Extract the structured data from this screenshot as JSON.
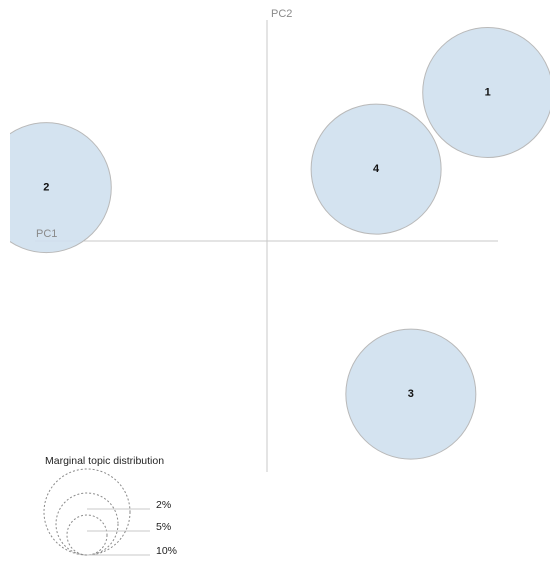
{
  "chart_data": {
    "type": "scatter",
    "title": "",
    "xlabel": "PC1",
    "ylabel": "PC2",
    "xlim": [
      -1,
      1
    ],
    "ylim": [
      -1,
      1
    ],
    "grid": false,
    "points": [
      {
        "label": "1",
        "x": 0.89,
        "y": 0.64,
        "size_pct": 4.2
      },
      {
        "label": "2",
        "x": -0.89,
        "y": 0.23,
        "size_pct": 4.2
      },
      {
        "label": "3",
        "x": 0.58,
        "y": -0.66,
        "size_pct": 4.2
      },
      {
        "label": "4",
        "x": 0.44,
        "y": 0.31,
        "size_pct": 4.2
      }
    ],
    "legend": {
      "title": "Marginal topic distribution",
      "placement": "bottom-left",
      "entries": [
        {
          "label": "2%",
          "value": 2
        },
        {
          "label": "5%",
          "value": 5
        },
        {
          "label": "10%",
          "value": 10
        }
      ]
    },
    "colors": {
      "circle_fill": "#cfe0ee",
      "circle_stroke": "#b9b9b9",
      "axis": "#c8c8c8"
    }
  }
}
